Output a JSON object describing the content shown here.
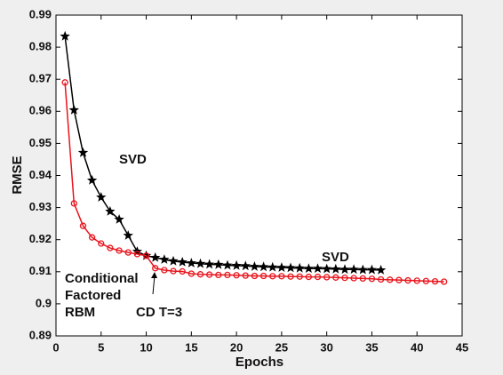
{
  "chart_data": {
    "type": "line",
    "xlabel": "Epochs",
    "ylabel": "RMSE",
    "xlim": [
      0,
      45
    ],
    "xticks": [
      0,
      5,
      10,
      15,
      20,
      25,
      30,
      35,
      40,
      45
    ],
    "ylim": [
      0.89,
      0.99
    ],
    "yticks": [
      0.89,
      0.9,
      0.91,
      0.92,
      0.93,
      0.94,
      0.95,
      0.96,
      0.97,
      0.98,
      0.99
    ],
    "annotations": [
      "SVD",
      "SVD",
      "Conditional",
      "Factored",
      "RBM",
      "CD T=3"
    ],
    "series": [
      {
        "color": "#000000",
        "marker": "star",
        "x": [
          1,
          2,
          3,
          4,
          5,
          6,
          7,
          8,
          9,
          10,
          11,
          12,
          13,
          14,
          15,
          16,
          17,
          18,
          19,
          20,
          21,
          22,
          23,
          24,
          25,
          26,
          27,
          28,
          29,
          30,
          31,
          32,
          33,
          34,
          35,
          36
        ],
        "values": [
          0.9834,
          0.9604,
          0.9471,
          0.9385,
          0.9332,
          0.9288,
          0.9263,
          0.9213,
          0.9163,
          0.915,
          0.9144,
          0.9138,
          0.9133,
          0.913,
          0.9127,
          0.9125,
          0.9123,
          0.9122,
          0.912,
          0.9119,
          0.9118,
          0.9116,
          0.9115,
          0.9114,
          0.9113,
          0.9112,
          0.9111,
          0.911,
          0.911,
          0.9109,
          0.9108,
          0.9107,
          0.9107,
          0.9106,
          0.9106,
          0.9105
        ]
      },
      {
        "color": "#e8141c",
        "marker": "circle",
        "x": [
          1,
          2,
          3,
          4,
          5,
          6,
          7,
          8,
          9,
          10,
          11,
          12,
          13,
          14,
          15,
          16,
          17,
          18,
          19,
          20,
          21,
          22,
          23,
          24,
          25,
          26,
          27,
          28,
          29,
          30,
          31,
          32,
          33,
          34,
          35,
          36,
          37,
          38,
          39,
          40,
          41,
          42,
          43
        ],
        "values": [
          0.969,
          0.9313,
          0.9243,
          0.9207,
          0.9188,
          0.9174,
          0.9166,
          0.916,
          0.9155,
          0.915,
          0.9111,
          0.9105,
          0.9102,
          0.9101,
          0.9094,
          0.9092,
          0.9091,
          0.909,
          0.909,
          0.9089,
          0.9088,
          0.9087,
          0.9087,
          0.9086,
          0.9086,
          0.9085,
          0.9085,
          0.9084,
          0.9084,
          0.9083,
          0.9082,
          0.9081,
          0.908,
          0.9079,
          0.9078,
          0.9076,
          0.9075,
          0.9074,
          0.9073,
          0.9072,
          0.9071,
          0.907,
          0.9069
        ]
      }
    ]
  }
}
